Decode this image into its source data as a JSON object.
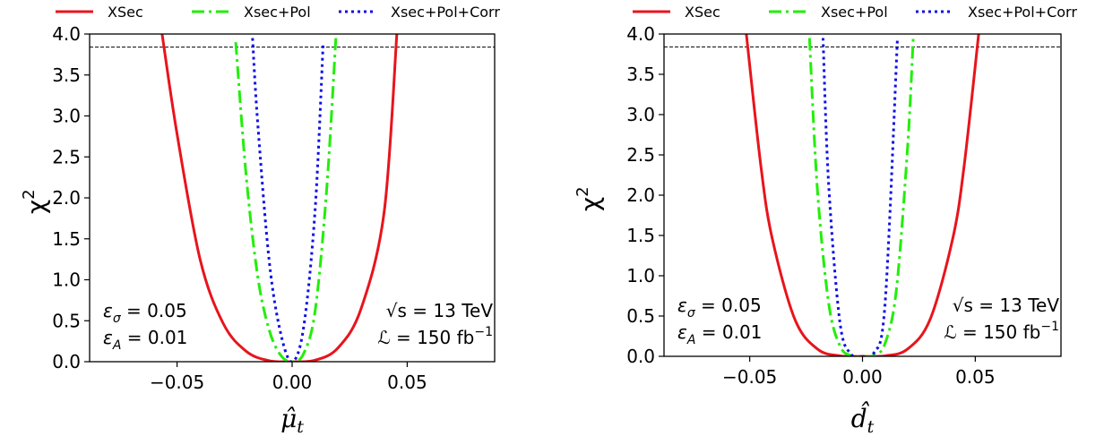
{
  "colors": {
    "xsec": "#e8141c",
    "pol": "#22ee0a",
    "corr": "#1010e6",
    "axis": "#000000"
  },
  "legend": [
    {
      "label": "XSec",
      "style": "solid",
      "color": "#e8141c"
    },
    {
      "label": "Xsec+Pol",
      "style": "dashdot",
      "color": "#22ee0a"
    },
    {
      "label": "Xsec+Pol+Corr",
      "style": "dotted",
      "color": "#1010e6"
    }
  ],
  "chart_data": [
    {
      "type": "line",
      "xlabel": "μ̂t",
      "ylabel": "χ2",
      "xlim": [
        -0.088,
        0.088
      ],
      "ylim": [
        0.0,
        4.0
      ],
      "x_ticks": [
        "−0.05",
        "0.00",
        "0.05"
      ],
      "x_tick_values": [
        -0.05,
        0.0,
        0.05
      ],
      "y_ticks": [
        "0.0",
        "0.5",
        "1.0",
        "1.5",
        "2.0",
        "2.5",
        "3.0",
        "3.5",
        "4.0"
      ],
      "y_tick_values": [
        0.0,
        0.5,
        1.0,
        1.5,
        2.0,
        2.5,
        3.0,
        3.5,
        4.0
      ],
      "reference_line": {
        "y": 3.84,
        "style": "dashed"
      },
      "series": [
        {
          "name": "XSec",
          "x": [
            -0.0565,
            -0.05,
            -0.04,
            -0.03,
            -0.02,
            -0.01,
            0.0,
            0.01,
            0.02,
            0.03,
            0.04,
            0.0455
          ],
          "y": [
            4.0,
            2.78,
            1.25,
            0.47,
            0.128,
            0.012,
            0.0,
            0.018,
            0.171,
            0.65,
            1.83,
            4.0
          ]
        },
        {
          "name": "Xsec+Pol",
          "x": [
            -0.0245,
            -0.02,
            -0.015,
            -0.01,
            -0.005,
            0.0,
            0.005,
            0.01,
            0.015,
            0.019
          ],
          "y": [
            3.9,
            2.28,
            1.05,
            0.39,
            0.08,
            0.0,
            0.1,
            0.62,
            2.1,
            3.95
          ]
        },
        {
          "name": "Xsec+Pol+Corr",
          "x": [
            -0.0172,
            -0.015,
            -0.01,
            -0.005,
            0.0,
            0.005,
            0.01,
            0.0135
          ],
          "y": [
            3.95,
            2.93,
            1.24,
            0.35,
            0.0,
            0.42,
            1.86,
            3.9
          ]
        }
      ],
      "annotations": {
        "eps_sigma": "εσ = 0.05",
        "eps_A": "εA = 0.01",
        "energy": "√s = 13 TeV",
        "lumi": "ℒ = 150 fb−1"
      }
    },
    {
      "type": "line",
      "xlabel": "d̂t",
      "ylabel": "χ2",
      "xlim": [
        -0.088,
        0.088
      ],
      "ylim": [
        0.0,
        4.0
      ],
      "x_ticks": [
        "−0.05",
        "0.00",
        "0.05"
      ],
      "x_tick_values": [
        -0.05,
        0.0,
        0.05
      ],
      "y_ticks": [
        "0.0",
        "0.5",
        "1.0",
        "1.5",
        "2.0",
        "2.5",
        "3.0",
        "3.5",
        "4.0"
      ],
      "y_tick_values": [
        0.0,
        0.5,
        1.0,
        1.5,
        2.0,
        2.5,
        3.0,
        3.5,
        4.0
      ],
      "reference_line": {
        "y": 3.84,
        "style": "dashed"
      },
      "series": [
        {
          "name": "XSec",
          "x": [
            -0.0515,
            -0.045,
            -0.04,
            -0.03,
            -0.02,
            -0.01,
            0.0,
            0.01,
            0.02,
            0.03,
            0.04,
            0.045,
            0.0515
          ],
          "y": [
            4.0,
            2.35,
            1.46,
            0.46,
            0.091,
            0.006,
            0.0,
            0.006,
            0.091,
            0.46,
            1.46,
            2.35,
            4.0
          ]
        },
        {
          "name": "Xsec+Pol",
          "x": [
            -0.0235,
            -0.02,
            -0.015,
            -0.01,
            -0.005,
            0.0,
            0.005,
            0.01,
            0.015,
            0.02,
            0.0225
          ],
          "y": [
            3.95,
            2.07,
            0.66,
            0.13,
            0.008,
            0.0,
            0.01,
            0.16,
            0.82,
            2.6,
            3.95
          ]
        },
        {
          "name": "Xsec+Pol+Corr",
          "x": [
            -0.0175,
            -0.015,
            -0.01,
            -0.005,
            0.0,
            0.005,
            0.01,
            0.0155
          ],
          "y": [
            3.95,
            2.13,
            0.42,
            0.026,
            0.0,
            0.04,
            0.65,
            3.95
          ]
        }
      ],
      "annotations": {
        "eps_sigma": "εσ = 0.05",
        "eps_A": "εA = 0.01",
        "energy": "√s = 13 TeV",
        "lumi": "ℒ = 150 fb−1"
      }
    }
  ]
}
